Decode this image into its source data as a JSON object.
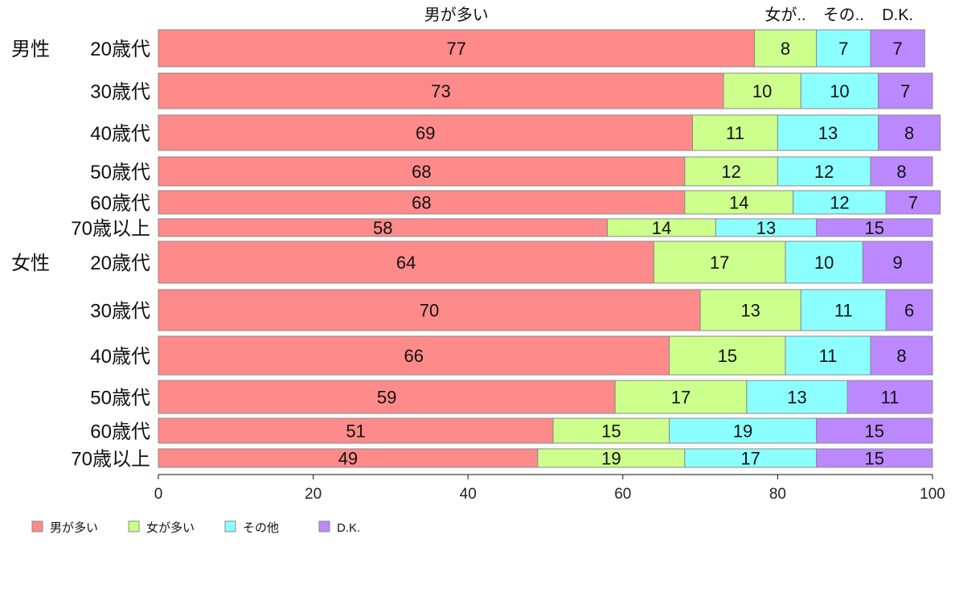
{
  "chart_data": {
    "type": "bar",
    "orientation": "horizontal",
    "stacked": true,
    "title": "",
    "xlabel": "",
    "ylabel": "",
    "xlim": [
      0,
      100
    ],
    "xticks": [
      "0",
      "20",
      "40",
      "60",
      "80",
      "100"
    ],
    "top_labels": [
      "男が多い",
      "女が..",
      "その..",
      "D.K."
    ],
    "legend_position": "bottom-left",
    "series": [
      {
        "name": "男が多い",
        "color": "#ff8a8a",
        "values": [
          77,
          73,
          69,
          68,
          68,
          58,
          64,
          70,
          66,
          59,
          51,
          49
        ]
      },
      {
        "name": "女が多い",
        "color": "#ccff8c",
        "values": [
          8,
          10,
          11,
          12,
          14,
          14,
          17,
          13,
          15,
          17,
          15,
          19
        ]
      },
      {
        "name": "その他",
        "color": "#8cffff",
        "values": [
          7,
          10,
          13,
          12,
          12,
          13,
          10,
          11,
          11,
          13,
          19,
          17
        ]
      },
      {
        "name": "D.K.",
        "color": "#bb88ff",
        "values": [
          7,
          7,
          8,
          8,
          7,
          15,
          9,
          6,
          8,
          11,
          15,
          15
        ]
      }
    ],
    "rows": [
      {
        "group": "男性",
        "label": "20歳代"
      },
      {
        "group": "",
        "label": "30歳代"
      },
      {
        "group": "",
        "label": "40歳代"
      },
      {
        "group": "",
        "label": "50歳代"
      },
      {
        "group": "",
        "label": "60歳代"
      },
      {
        "group": "",
        "label": "70歳以上"
      },
      {
        "group": "女性",
        "label": "20歳代"
      },
      {
        "group": "",
        "label": "30歳代"
      },
      {
        "group": "",
        "label": "40歳代"
      },
      {
        "group": "",
        "label": "50歳代"
      },
      {
        "group": "",
        "label": "60歳代"
      },
      {
        "group": "",
        "label": "70歳以上"
      }
    ]
  }
}
